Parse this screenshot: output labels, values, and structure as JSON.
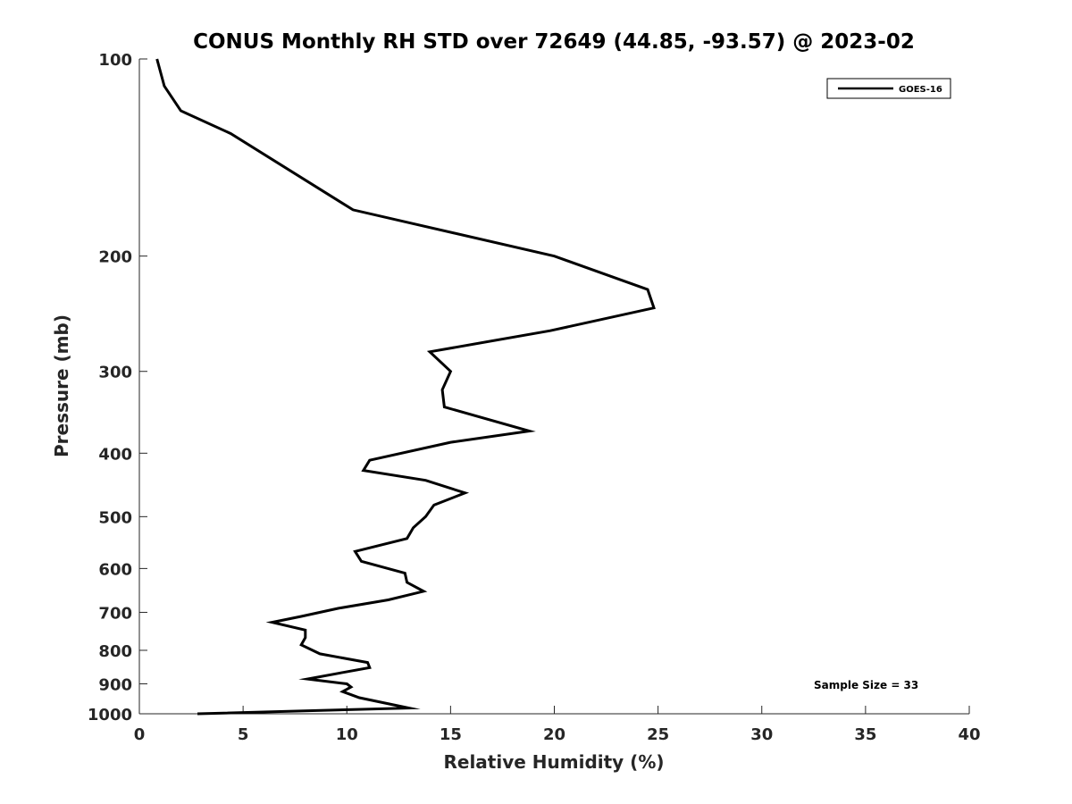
{
  "chart_data": {
    "type": "line",
    "title": "CONUS Monthly RH STD over 72649 (44.85, -93.57) @ 2023-02",
    "xlabel": "Relative Humidity (%)",
    "ylabel": "Pressure (mb)",
    "xlim": [
      0,
      40
    ],
    "ylim": [
      100,
      1000
    ],
    "yscale": "log",
    "y_reversed": true,
    "xticks": [
      0,
      5,
      10,
      15,
      20,
      25,
      30,
      35,
      40
    ],
    "xtick_labels": [
      "0",
      "5",
      "10",
      "15",
      "20",
      "25",
      "30",
      "35",
      "40"
    ],
    "yticks": [
      100,
      200,
      300,
      400,
      500,
      600,
      700,
      800,
      900,
      1000
    ],
    "ytick_labels": [
      "100",
      "200",
      "300",
      "400",
      "500",
      "600",
      "700",
      "800",
      "900",
      "1000"
    ],
    "grid": false,
    "legend_position": "top-right",
    "series": [
      {
        "name": "GOES-16",
        "color": "#000000",
        "x": [
          0.85,
          1.2,
          2.0,
          4.4,
          10.3,
          20.0,
          24.5,
          24.8,
          19.8,
          14.0,
          15.0,
          14.6,
          14.7,
          18.8,
          15.0,
          11.1,
          10.8,
          13.8,
          15.7,
          14.2,
          13.8,
          13.2,
          12.9,
          10.4,
          10.7,
          12.8,
          12.9,
          13.7,
          12.0,
          9.6,
          7.8,
          6.4,
          8.0,
          8.0,
          7.8,
          8.7,
          11.0,
          11.1,
          9.8,
          8.1,
          10.0,
          10.2,
          9.8,
          10.6,
          13.0,
          2.8
        ],
        "y": [
          100,
          110,
          120,
          130,
          170,
          200,
          225,
          240,
          260,
          280,
          300,
          320,
          340,
          370,
          385,
          410,
          425,
          440,
          460,
          480,
          500,
          520,
          540,
          565,
          585,
          610,
          630,
          650,
          670,
          690,
          710,
          725,
          745,
          765,
          785,
          810,
          835,
          850,
          865,
          885,
          900,
          910,
          925,
          945,
          980,
          1000
        ]
      }
    ],
    "legend": [
      "GOES-16"
    ],
    "annotations": [
      "Sample Size = 33"
    ]
  }
}
